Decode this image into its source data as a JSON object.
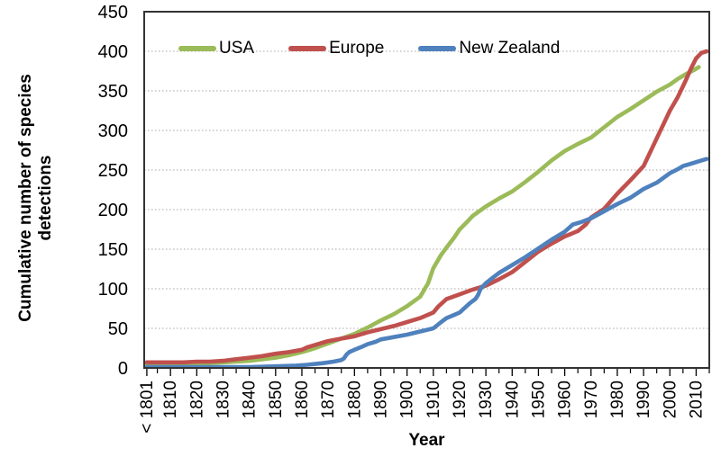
{
  "chart_data": {
    "type": "line",
    "xlabel": "Year",
    "ylabel": "Cumulative number of species detections",
    "x_domain": [
      1800,
      2015
    ],
    "ylim": [
      0,
      450
    ],
    "y_ticks": [
      0,
      50,
      100,
      150,
      200,
      250,
      300,
      350,
      400,
      450
    ],
    "x_tick_years": [
      1801,
      1810,
      1820,
      1830,
      1840,
      1850,
      1860,
      1870,
      1880,
      1890,
      1900,
      1910,
      1920,
      1930,
      1940,
      1950,
      1960,
      1970,
      1980,
      1990,
      2000,
      2010
    ],
    "x_tick_labels": [
      "< 1801",
      "1810",
      "1820",
      "1830",
      "1840",
      "1850",
      "1860",
      "1870",
      "1880",
      "1890",
      "1900",
      "1910",
      "1920",
      "1930",
      "1940",
      "1950",
      "1960",
      "1970",
      "1980",
      "1990",
      "2000",
      "2010"
    ],
    "x_minor_ticks": [
      1805,
      1815,
      1825,
      1835,
      1845,
      1855,
      1865,
      1875,
      1885,
      1895,
      1905,
      1915,
      1925,
      1935,
      1945,
      1955,
      1965,
      1975,
      1985,
      1995,
      2005,
      2015
    ],
    "grid": "horizontal-dotted",
    "grid_color": "#a6a6a6",
    "border_color": "#333333",
    "legend_position": "top-inside",
    "series": [
      {
        "name": "USA",
        "color": "#9BBB59",
        "points": [
          [
            1801,
            4
          ],
          [
            1806,
            4
          ],
          [
            1810,
            5
          ],
          [
            1815,
            5
          ],
          [
            1820,
            6
          ],
          [
            1825,
            6
          ],
          [
            1830,
            7
          ],
          [
            1835,
            8
          ],
          [
            1840,
            9
          ],
          [
            1845,
            11
          ],
          [
            1850,
            13
          ],
          [
            1855,
            16
          ],
          [
            1860,
            20
          ],
          [
            1865,
            25
          ],
          [
            1870,
            31
          ],
          [
            1875,
            37
          ],
          [
            1880,
            43
          ],
          [
            1885,
            51
          ],
          [
            1890,
            60
          ],
          [
            1895,
            68
          ],
          [
            1900,
            78
          ],
          [
            1905,
            90
          ],
          [
            1908,
            107
          ],
          [
            1910,
            126
          ],
          [
            1913,
            143
          ],
          [
            1915,
            152
          ],
          [
            1918,
            165
          ],
          [
            1920,
            175
          ],
          [
            1923,
            185
          ],
          [
            1925,
            192
          ],
          [
            1930,
            204
          ],
          [
            1935,
            214
          ],
          [
            1940,
            223
          ],
          [
            1945,
            235
          ],
          [
            1950,
            248
          ],
          [
            1955,
            262
          ],
          [
            1960,
            274
          ],
          [
            1965,
            283
          ],
          [
            1970,
            291
          ],
          [
            1975,
            304
          ],
          [
            1980,
            317
          ],
          [
            1985,
            327
          ],
          [
            1990,
            338
          ],
          [
            1995,
            349
          ],
          [
            2000,
            358
          ],
          [
            2003,
            365
          ],
          [
            2006,
            371
          ],
          [
            2009,
            376
          ],
          [
            2011,
            380
          ]
        ]
      },
      {
        "name": "Europe",
        "color": "#C0504D",
        "points": [
          [
            1801,
            7
          ],
          [
            1810,
            7
          ],
          [
            1815,
            7
          ],
          [
            1820,
            8
          ],
          [
            1825,
            8
          ],
          [
            1830,
            9
          ],
          [
            1835,
            11
          ],
          [
            1840,
            13
          ],
          [
            1845,
            15
          ],
          [
            1850,
            18
          ],
          [
            1855,
            20
          ],
          [
            1860,
            23
          ],
          [
            1862,
            26
          ],
          [
            1865,
            29
          ],
          [
            1870,
            34
          ],
          [
            1875,
            37
          ],
          [
            1880,
            40
          ],
          [
            1885,
            45
          ],
          [
            1890,
            49
          ],
          [
            1895,
            53
          ],
          [
            1900,
            58
          ],
          [
            1905,
            63
          ],
          [
            1910,
            70
          ],
          [
            1912,
            78
          ],
          [
            1915,
            87
          ],
          [
            1920,
            93
          ],
          [
            1925,
            99
          ],
          [
            1930,
            104
          ],
          [
            1935,
            112
          ],
          [
            1940,
            121
          ],
          [
            1945,
            134
          ],
          [
            1950,
            147
          ],
          [
            1955,
            157
          ],
          [
            1960,
            166
          ],
          [
            1965,
            173
          ],
          [
            1968,
            181
          ],
          [
            1970,
            190
          ],
          [
            1975,
            201
          ],
          [
            1980,
            220
          ],
          [
            1985,
            237
          ],
          [
            1990,
            255
          ],
          [
            1995,
            290
          ],
          [
            2000,
            325
          ],
          [
            2003,
            342
          ],
          [
            2006,
            363
          ],
          [
            2008,
            378
          ],
          [
            2010,
            391
          ],
          [
            2012,
            398
          ],
          [
            2014,
            400
          ]
        ]
      },
      {
        "name": "New Zealand",
        "color": "#4F81BD",
        "points": [
          [
            1801,
            1
          ],
          [
            1810,
            1
          ],
          [
            1820,
            1
          ],
          [
            1830,
            1
          ],
          [
            1840,
            1
          ],
          [
            1850,
            2
          ],
          [
            1858,
            3
          ],
          [
            1862,
            4
          ],
          [
            1865,
            5
          ],
          [
            1868,
            6
          ],
          [
            1872,
            8
          ],
          [
            1875,
            10
          ],
          [
            1876,
            12
          ],
          [
            1877,
            17
          ],
          [
            1878,
            20
          ],
          [
            1880,
            23
          ],
          [
            1883,
            27
          ],
          [
            1885,
            30
          ],
          [
            1888,
            33
          ],
          [
            1890,
            36
          ],
          [
            1895,
            39
          ],
          [
            1900,
            42
          ],
          [
            1905,
            46
          ],
          [
            1910,
            50
          ],
          [
            1913,
            58
          ],
          [
            1915,
            63
          ],
          [
            1918,
            67
          ],
          [
            1920,
            70
          ],
          [
            1922,
            76
          ],
          [
            1924,
            82
          ],
          [
            1926,
            87
          ],
          [
            1927,
            92
          ],
          [
            1928,
            100
          ],
          [
            1930,
            107
          ],
          [
            1933,
            115
          ],
          [
            1935,
            120
          ],
          [
            1940,
            130
          ],
          [
            1945,
            140
          ],
          [
            1950,
            151
          ],
          [
            1955,
            162
          ],
          [
            1960,
            172
          ],
          [
            1963,
            181
          ],
          [
            1966,
            184
          ],
          [
            1970,
            189
          ],
          [
            1975,
            198
          ],
          [
            1980,
            207
          ],
          [
            1985,
            215
          ],
          [
            1990,
            226
          ],
          [
            1995,
            234
          ],
          [
            2000,
            246
          ],
          [
            2003,
            251
          ],
          [
            2005,
            255
          ],
          [
            2008,
            258
          ],
          [
            2011,
            261
          ],
          [
            2014,
            264
          ]
        ]
      }
    ]
  }
}
